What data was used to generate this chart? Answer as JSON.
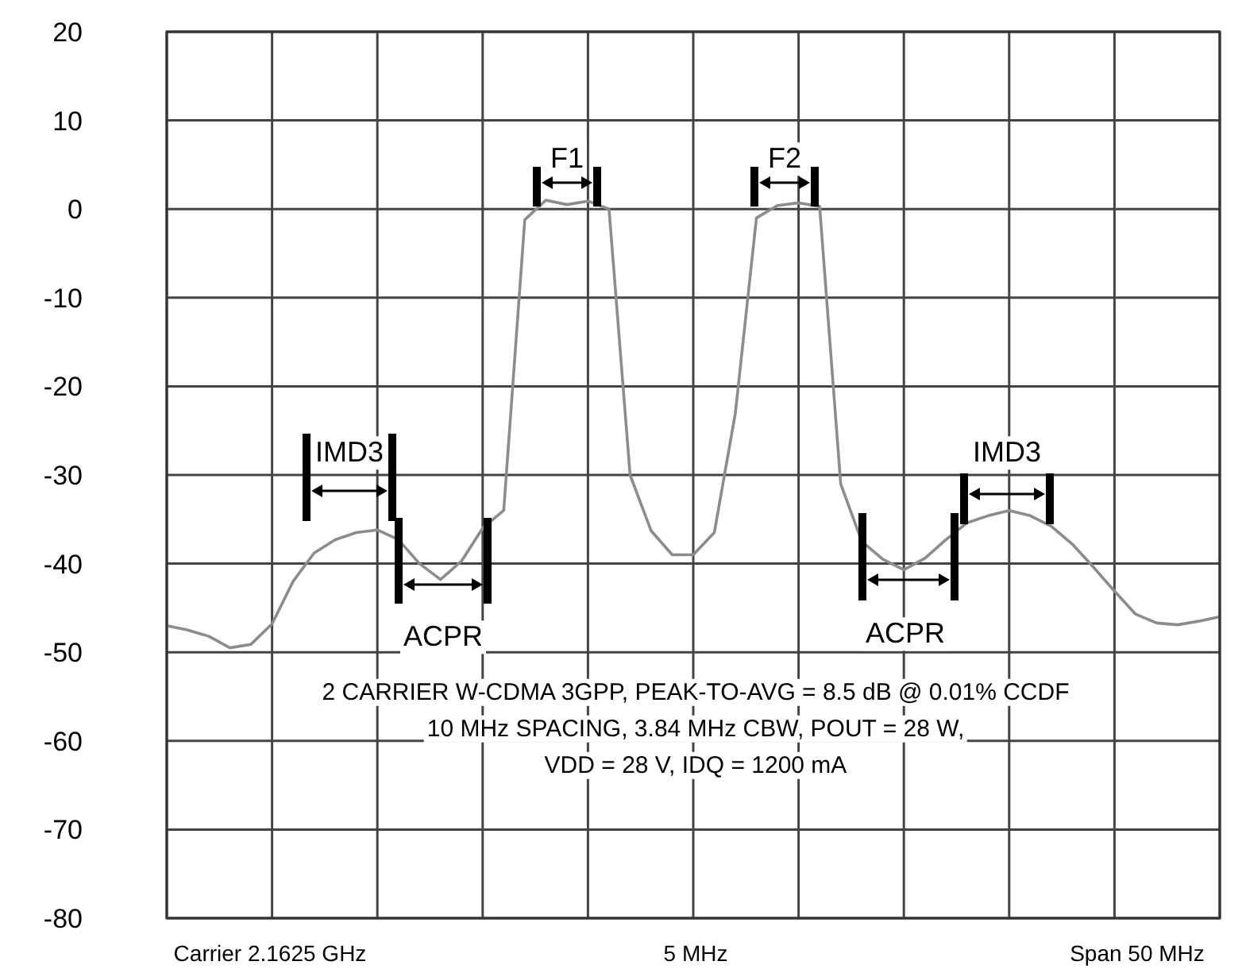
{
  "chart_data": {
    "type": "line",
    "categories": [
      null,
      null,
      null,
      null,
      null,
      null,
      null,
      null,
      null,
      null,
      null,
      null,
      null,
      null,
      null,
      null,
      null,
      null,
      null,
      null,
      null,
      null,
      null,
      null,
      null,
      null,
      null,
      null,
      null,
      null,
      null,
      null,
      null,
      null,
      null,
      null,
      null,
      null,
      null,
      null,
      null,
      null,
      null,
      null,
      null,
      null,
      null,
      null,
      null,
      null,
      null
    ],
    "series": [
      {
        "color": "#8c8c8c",
        "values": [
          -47,
          -47.5,
          -48.2,
          -49.5,
          -49.1,
          -46.8,
          -42,
          -38.8,
          -37.3,
          -36.5,
          -36.2,
          -37.3,
          -40,
          -41.8,
          -39.7,
          -36,
          -34,
          -1.2,
          1,
          0.5,
          0.9,
          0,
          -30,
          -36.3,
          -39,
          -39,
          -36.5,
          -23,
          -1,
          0.4,
          0.7,
          0.3,
          -31,
          -37.5,
          -39.5,
          -40.7,
          -39.4,
          -37.3,
          -35.4,
          -34.6,
          -34,
          -34.6,
          -35.8,
          -37.8,
          -40.4,
          -43.1,
          -45.7,
          -46.7,
          -46.9,
          -46.5,
          -46
        ]
      }
    ],
    "ylim": [
      -80,
      20
    ],
    "yticks": [
      -80,
      -70,
      -60,
      -50,
      -40,
      -30,
      -20,
      -10,
      0,
      10,
      20
    ],
    "tick_labels": "y",
    "grid": true,
    "marker": "none",
    "line_style": "solid",
    "annotations": [
      "F1",
      "F2",
      "IMD3",
      "IMD3",
      "ACPR",
      "ACPR",
      "2 CARRIER W-CDMA 3GPP, PEAK-TO-AVG = 8.5 dB @ 0.01% CCDF",
      "10 MHz SPACING, 3.84 MHz CBW, POUT = 28 W,",
      "VDD = 28 V, IDQ = 1200 mA",
      "Carrier 2.1625 GHz",
      "5 MHz",
      "Span 50 MHz"
    ]
  }
}
